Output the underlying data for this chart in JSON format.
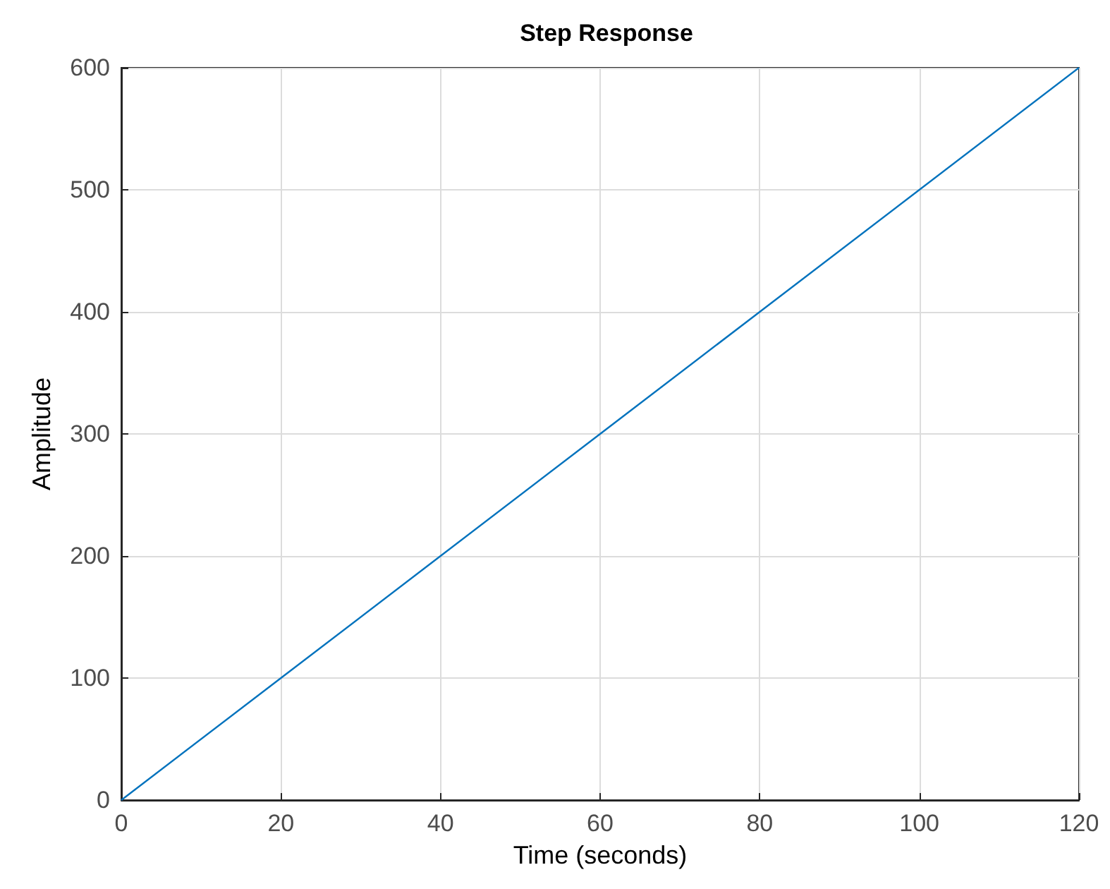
{
  "chart_data": {
    "type": "line",
    "title": "Step Response",
    "xlabel": "Time (seconds)",
    "ylabel": "Amplitude",
    "x": [
      0,
      20,
      40,
      60,
      80,
      100,
      120
    ],
    "series": [
      {
        "color": "#0072bd",
        "values": [
          0,
          100,
          200,
          300,
          400,
          500,
          600
        ]
      }
    ],
    "xlim": [
      0,
      120
    ],
    "xticks": [
      0,
      20,
      40,
      60,
      80,
      100,
      120
    ],
    "ylim": [
      0,
      600
    ],
    "yticks": [
      0,
      100,
      200,
      300,
      400,
      500,
      600
    ],
    "grid": true,
    "marker": "none",
    "line_style": "solid"
  }
}
